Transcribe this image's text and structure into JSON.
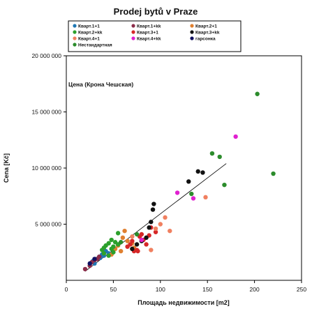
{
  "chart_data": {
    "type": "scatter",
    "title": "Prodej bytů v Praze",
    "xlabel": "Площадь недвижимости [m2]",
    "ylabel": "Cena [Kč]",
    "annotation": "Цена (Крона Чешская)",
    "xlim": [
      0,
      250
    ],
    "ylim": [
      0,
      20000000
    ],
    "xticks": [
      0,
      50,
      100,
      150,
      200,
      250
    ],
    "yticks": [
      5000000,
      10000000,
      15000000,
      20000000
    ],
    "yticklabels": [
      "5 000 000",
      "10 000 000",
      "15 000 000",
      "20 000 000"
    ],
    "grid": false,
    "legend_position": "top",
    "series": [
      {
        "name": "Кварт.1+1",
        "color": "#1f77b4",
        "points": [
          [
            28,
            1700000
          ],
          [
            32,
            1900000
          ],
          [
            35,
            2100000
          ],
          [
            38,
            2300000
          ],
          [
            40,
            2200000
          ],
          [
            42,
            2600000
          ],
          [
            45,
            2400000
          ],
          [
            30,
            1500000
          ],
          [
            36,
            2000000
          ]
        ]
      },
      {
        "name": "Кварт.1+kk",
        "color": "#8c2d4a",
        "points": [
          [
            20,
            1000000
          ],
          [
            25,
            1300000
          ],
          [
            27,
            1600000
          ],
          [
            30,
            1800000
          ],
          [
            33,
            1900000
          ],
          [
            35,
            2100000
          ]
        ]
      },
      {
        "name": "Кварт.2+1",
        "color": "#e08030",
        "points": [
          [
            48,
            2300000
          ],
          [
            52,
            2800000
          ],
          [
            55,
            3100000
          ],
          [
            60,
            3800000
          ],
          [
            62,
            4400000
          ],
          [
            65,
            3500000
          ],
          [
            70,
            3300000
          ],
          [
            72,
            2900000
          ],
          [
            58,
            2600000
          ]
        ]
      },
      {
        "name": "Кварт.2+kk",
        "color": "#2ca02c",
        "points": [
          [
            38,
            2700000
          ],
          [
            40,
            2900000
          ],
          [
            42,
            3100000
          ],
          [
            45,
            3300000
          ],
          [
            48,
            3600000
          ],
          [
            50,
            3000000
          ],
          [
            52,
            3400000
          ],
          [
            55,
            3200000
          ],
          [
            45,
            2200000
          ],
          [
            50,
            2500000
          ],
          [
            55,
            4200000
          ],
          [
            40,
            2400000
          ],
          [
            48,
            2800000
          ]
        ]
      },
      {
        "name": "Кварт.3+1",
        "color": "#d62728",
        "points": [
          [
            65,
            3000000
          ],
          [
            68,
            3200000
          ],
          [
            70,
            3500000
          ],
          [
            72,
            2600000
          ],
          [
            75,
            2700000
          ],
          [
            78,
            3900000
          ],
          [
            80,
            4100000
          ],
          [
            82,
            3600000
          ],
          [
            85,
            3200000
          ],
          [
            88,
            4000000
          ],
          [
            90,
            4700000
          ],
          [
            95,
            4300000
          ],
          [
            76,
            2600000
          ]
        ]
      },
      {
        "name": "Кварт.3+kk",
        "color": "#111111",
        "points": [
          [
            70,
            2800000
          ],
          [
            75,
            3200000
          ],
          [
            80,
            3500000
          ],
          [
            85,
            3800000
          ],
          [
            90,
            5200000
          ],
          [
            92,
            6300000
          ],
          [
            93,
            6800000
          ],
          [
            140,
            9700000
          ],
          [
            145,
            9600000
          ],
          [
            130,
            8800000
          ],
          [
            88,
            4700000
          ]
        ]
      },
      {
        "name": "Кварт.4+1",
        "color": "#f08060",
        "points": [
          [
            90,
            2700000
          ],
          [
            95,
            4600000
          ],
          [
            100,
            5000000
          ],
          [
            105,
            5600000
          ],
          [
            110,
            4400000
          ],
          [
            148,
            7400000
          ],
          [
            70,
            3900000
          ]
        ]
      },
      {
        "name": "Кварт.4+kk",
        "color": "#e020d0",
        "points": [
          [
            118,
            7800000
          ],
          [
            135,
            7300000
          ],
          [
            180,
            12800000
          ],
          [
            80,
            3600000
          ]
        ]
      },
      {
        "name": "гарсонка",
        "color": "#101060",
        "points": [
          [
            25,
            1500000
          ],
          [
            30,
            1900000
          ]
        ]
      },
      {
        "name": "Нестандартная",
        "color": "#2c8c2c",
        "points": [
          [
            133,
            7700000
          ],
          [
            155,
            11300000
          ],
          [
            163,
            11000000
          ],
          [
            168,
            8500000
          ],
          [
            203,
            16600000
          ],
          [
            220,
            9500000
          ],
          [
            58,
            3400000
          ],
          [
            75,
            4100000
          ]
        ]
      }
    ],
    "trendline": {
      "x": [
        20,
        170
      ],
      "y": [
        800000,
        10400000
      ]
    }
  }
}
